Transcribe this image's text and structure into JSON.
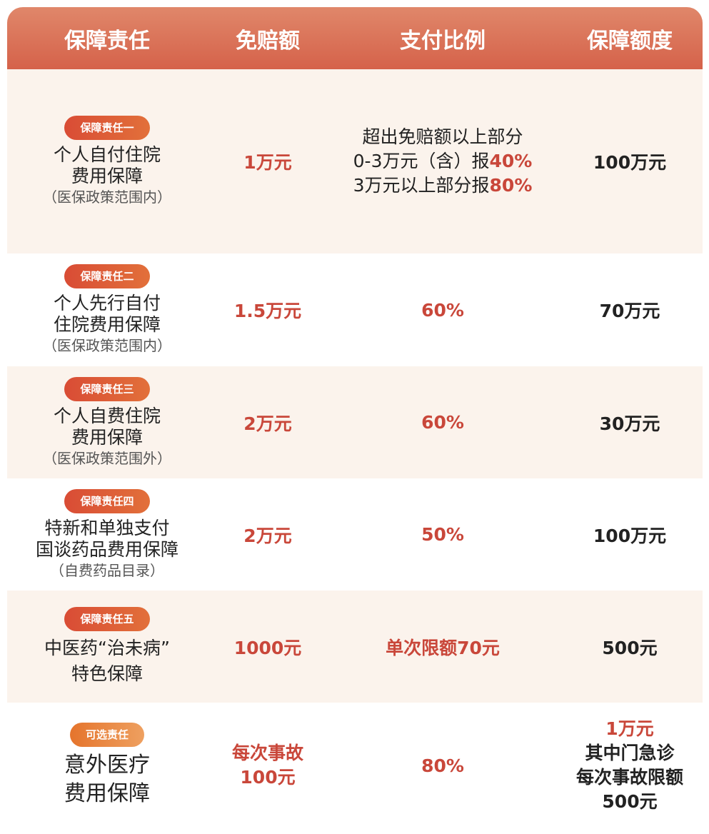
{
  "header": [
    "保障责任",
    "免赔额",
    "支付比例",
    "保障额度"
  ],
  "rows": [
    {
      "badge": "保障责任一",
      "name": [
        "个人自付住院",
        "费用保障"
      ],
      "note": "（医保政策范围内）",
      "deductible": "1万元",
      "ratio_lines": [
        {
          "text": "超出免赔额以上部分",
          "hl": ""
        },
        {
          "text": "0-3万元（含）报",
          "hl": "40%"
        },
        {
          "text": "3万元以上部分报",
          "hl": "80%"
        }
      ],
      "limit": "100万元"
    },
    {
      "badge": "保障责任二",
      "name": [
        "个人先行自付",
        "住院费用保障"
      ],
      "note": "（医保政策范围内）",
      "deductible": "1.5万元",
      "ratio": "60%",
      "limit": "70万元"
    },
    {
      "badge": "保障责任三",
      "name": [
        "个人自费住院",
        "费用保障"
      ],
      "note": "（医保政策范围外）",
      "deductible": "2万元",
      "ratio": "60%",
      "limit": "30万元"
    },
    {
      "badge": "保障责任四",
      "name": [
        "特新和单独支付",
        "国谈药品费用保障"
      ],
      "note": "（自费药品目录）",
      "deductible": "2万元",
      "ratio": "50%",
      "limit": "100万元"
    },
    {
      "badge": "保障责任五",
      "name": [
        "中医药“治未病”",
        "特色保障"
      ],
      "deductible": "1000元",
      "ratio": "单次限额70元",
      "limit": "500元"
    },
    {
      "badge": "可选责任",
      "name": [
        "意外医疗",
        "费用保障"
      ],
      "deductible": [
        "每次事故",
        "100元"
      ],
      "ratio": "80%",
      "limit_red": "1万元",
      "limit_lines": [
        "其中门急诊",
        "每次事故限额",
        "500元"
      ]
    }
  ],
  "colors": {
    "header": "#d5624a",
    "accent": "#c9473a",
    "cream": "#fbf3ec",
    "optional_badge": "#e5742c"
  }
}
